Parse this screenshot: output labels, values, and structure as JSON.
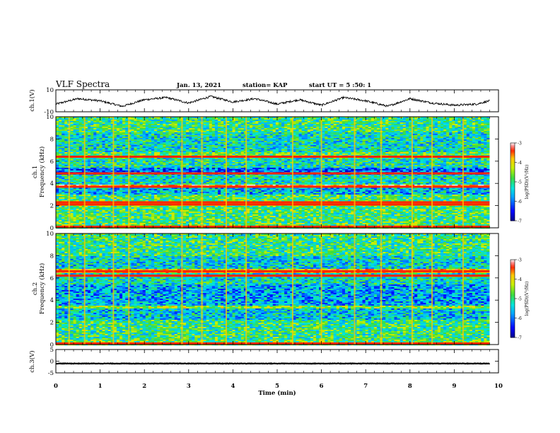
{
  "header": {
    "title": "VLF Spectra",
    "date": "Jan. 13, 2021",
    "station": "station= KAP",
    "start": "start  UT  =   5  :50: 1"
  },
  "chart_data": [
    {
      "type": "line",
      "panel": "ch1-waveform",
      "ylabel": "ch.1(V)",
      "xlim": [
        0,
        10
      ],
      "ylim": [
        -10,
        10
      ],
      "yticks": [
        "10",
        "-10"
      ],
      "series": [
        {
          "x": [
            0.0,
            0.5,
            1.0,
            1.5,
            2.0,
            2.5,
            3.0,
            3.5,
            4.0,
            4.5,
            5.0,
            5.5,
            6.0,
            6.5,
            7.0,
            7.5,
            8.0,
            8.5,
            9.0,
            9.5,
            9.8
          ],
          "values": [
            -3,
            2,
            0,
            -5,
            1,
            3,
            -2,
            4,
            -1,
            2,
            -3,
            1,
            -4,
            3,
            0,
            -5,
            2,
            -2,
            -4,
            -3,
            0
          ]
        }
      ]
    },
    {
      "type": "heatmap",
      "panel": "ch1-spectrogram",
      "ylabel": "ch.1\nFrequency (kHz)",
      "xlim": [
        0,
        10
      ],
      "ylim": [
        0,
        10
      ],
      "yticks": [
        "0",
        "2",
        "4",
        "6",
        "8",
        "10"
      ],
      "data_extent_min": 9.8,
      "colorbar": {
        "label": "log(PSD)(V²/Hz)",
        "range": [
          -7,
          -3
        ],
        "ticks": [
          "-3",
          "-4",
          "-5",
          "-6",
          "-7"
        ]
      },
      "bands_khz": [
        {
          "from": 0.0,
          "to": 0.4,
          "level": -4.8
        },
        {
          "from": 0.4,
          "to": 2.0,
          "level": -4.9
        },
        {
          "from": 2.0,
          "to": 2.4,
          "level": -4.3
        },
        {
          "from": 2.4,
          "to": 3.0,
          "level": -4.9
        },
        {
          "from": 3.0,
          "to": 3.6,
          "level": -5.6
        },
        {
          "from": 3.6,
          "to": 3.9,
          "level": -3.5
        },
        {
          "from": 3.9,
          "to": 4.8,
          "level": -5.3
        },
        {
          "from": 4.8,
          "to": 5.4,
          "level": -6.0
        },
        {
          "from": 5.4,
          "to": 6.4,
          "level": -5.2
        },
        {
          "from": 6.4,
          "to": 6.8,
          "level": -4.8
        },
        {
          "from": 6.8,
          "to": 8.6,
          "level": -5.3
        },
        {
          "from": 8.6,
          "to": 10.0,
          "level": -5.0
        }
      ],
      "red_lines_khz": [
        0.1,
        2.1,
        2.3,
        3.7,
        4.9,
        6.4
      ],
      "vertical_events_min": [
        0.3,
        0.65,
        1.3,
        1.65,
        2.85,
        3.3,
        3.85,
        4.3,
        5.35,
        6.0,
        6.75,
        7.35,
        8.05,
        8.5,
        9.2
      ]
    },
    {
      "type": "heatmap",
      "panel": "ch2-spectrogram",
      "ylabel": "ch.2\nFrequency (kHz)",
      "xlim": [
        0,
        10
      ],
      "ylim": [
        0,
        10
      ],
      "yticks": [
        "0",
        "2",
        "4",
        "6",
        "8",
        "10"
      ],
      "data_extent_min": 9.8,
      "colorbar": {
        "label": "log(PSD)(V²/Hz)",
        "range": [
          -7,
          -3
        ],
        "ticks": [
          "-3",
          "-4",
          "-5",
          "-6",
          "-7"
        ]
      },
      "bands_khz": [
        {
          "from": 0.0,
          "to": 0.4,
          "level": -4.8
        },
        {
          "from": 0.4,
          "to": 2.2,
          "level": -5.0
        },
        {
          "from": 2.2,
          "to": 3.2,
          "level": -5.5
        },
        {
          "from": 3.2,
          "to": 3.5,
          "level": -4.5
        },
        {
          "from": 3.5,
          "to": 5.4,
          "level": -5.7
        },
        {
          "from": 5.4,
          "to": 6.4,
          "level": -5.3
        },
        {
          "from": 6.4,
          "to": 6.8,
          "level": -3.9
        },
        {
          "from": 6.8,
          "to": 8.0,
          "level": -5.4
        },
        {
          "from": 8.0,
          "to": 10.0,
          "level": -5.0
        }
      ],
      "red_lines_khz": [
        0.1,
        6.2,
        6.6
      ],
      "vertical_events_min": [
        0.3,
        0.65,
        1.3,
        1.65,
        2.85,
        3.3,
        3.85,
        4.3,
        5.35,
        6.0,
        6.75,
        7.35,
        8.05,
        8.5,
        9.2
      ]
    },
    {
      "type": "line",
      "panel": "ch3-waveform",
      "ylabel": "ch.3(V)",
      "xlabel": "Time  (min)",
      "xlim": [
        0,
        10
      ],
      "ylim": [
        -5,
        5
      ],
      "yticks": [
        "5",
        "0",
        "-5"
      ],
      "xticks": [
        "0",
        "1",
        "2",
        "3",
        "4",
        "5",
        "6",
        "7",
        "8",
        "9",
        "10"
      ],
      "series": [
        {
          "x": [
            0.0,
            9.8
          ],
          "values": [
            -1.0,
            -1.0
          ]
        }
      ]
    }
  ]
}
